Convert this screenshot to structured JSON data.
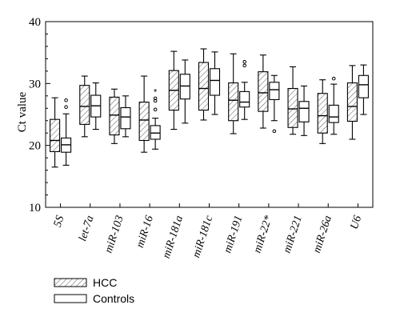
{
  "chart_data": {
    "type": "boxplot",
    "ylabel": "Ct value",
    "ylim": [
      10,
      40
    ],
    "yticks": [
      10,
      20,
      30,
      40
    ],
    "categories": [
      "5S",
      "let-7a",
      "miR-103",
      "miR-16",
      "miR-181a",
      "miR-181c",
      "miR-191",
      "miR-22*",
      "miR-221",
      "miR-26a",
      "U6"
    ],
    "legend": [
      "HCC",
      "Controls"
    ],
    "series": [
      {
        "name": "HCC",
        "pattern": "hatched",
        "boxes": [
          {
            "min": 16.5,
            "q1": 19.0,
            "median": 20.8,
            "q3": 24.2,
            "max": 27.7,
            "outliers": []
          },
          {
            "min": 21.4,
            "q1": 23.4,
            "median": 26.3,
            "q3": 29.7,
            "max": 31.2,
            "outliers": []
          },
          {
            "min": 20.3,
            "q1": 21.7,
            "median": 24.9,
            "q3": 27.8,
            "max": 29.1,
            "outliers": []
          },
          {
            "min": 18.9,
            "q1": 20.8,
            "median": 24.1,
            "q3": 27.0,
            "max": 31.2,
            "outliers": []
          },
          {
            "min": 22.6,
            "q1": 25.7,
            "median": 28.9,
            "q3": 32.1,
            "max": 35.2,
            "outliers": []
          },
          {
            "min": 24.1,
            "q1": 25.7,
            "median": 29.2,
            "q3": 33.4,
            "max": 35.6,
            "outliers": []
          },
          {
            "min": 21.9,
            "q1": 24.0,
            "median": 27.3,
            "q3": 30.1,
            "max": 34.8,
            "outliers": []
          },
          {
            "min": 22.8,
            "q1": 25.5,
            "median": 28.5,
            "q3": 31.9,
            "max": 34.6,
            "outliers": []
          },
          {
            "min": 21.8,
            "q1": 22.9,
            "median": 25.9,
            "q3": 29.2,
            "max": 32.7,
            "outliers": []
          },
          {
            "min": 20.3,
            "q1": 22.0,
            "median": 24.8,
            "q3": 28.4,
            "max": 30.6,
            "outliers": []
          },
          {
            "min": 21.0,
            "q1": 23.9,
            "median": 26.3,
            "q3": 30.1,
            "max": 32.9,
            "outliers": []
          }
        ]
      },
      {
        "name": "Controls",
        "pattern": "plain",
        "boxes": [
          {
            "min": 16.8,
            "q1": 18.9,
            "median": 20.1,
            "q3": 21.2,
            "max": 25.1,
            "outliers": [
              26.2,
              27.3
            ]
          },
          {
            "min": 22.6,
            "q1": 24.6,
            "median": 26.4,
            "q3": 28.1,
            "max": 30.1,
            "outliers": []
          },
          {
            "min": 21.4,
            "q1": 22.7,
            "median": 24.6,
            "q3": 26.1,
            "max": 28.0,
            "outliers": []
          },
          {
            "min": 19.4,
            "q1": 21.0,
            "median": 22.0,
            "q3": 23.2,
            "max": 24.4,
            "outliers": [
              25.8,
              27.2,
              27.6
            ],
            "extremes": [
              28.7
            ]
          },
          {
            "min": 23.6,
            "q1": 27.5,
            "median": 29.6,
            "q3": 31.5,
            "max": 33.8,
            "outliers": []
          },
          {
            "min": 25.0,
            "q1": 28.1,
            "median": 30.5,
            "q3": 32.4,
            "max": 35.1,
            "outliers": []
          },
          {
            "min": 24.2,
            "q1": 26.2,
            "median": 27.0,
            "q3": 28.7,
            "max": 30.2,
            "outliers": [
              32.9,
              33.5
            ]
          },
          {
            "min": 24.0,
            "q1": 27.4,
            "median": 29.0,
            "q3": 30.2,
            "max": 31.3,
            "outliers": [
              22.3
            ]
          },
          {
            "min": 21.6,
            "q1": 23.8,
            "median": 26.0,
            "q3": 27.1,
            "max": 29.6,
            "outliers": []
          },
          {
            "min": 21.8,
            "q1": 23.7,
            "median": 24.6,
            "q3": 26.5,
            "max": 29.9,
            "outliers": [
              30.8
            ]
          },
          {
            "min": 25.0,
            "q1": 27.7,
            "median": 29.8,
            "q3": 31.3,
            "max": 33.0,
            "outliers": []
          }
        ]
      }
    ]
  }
}
